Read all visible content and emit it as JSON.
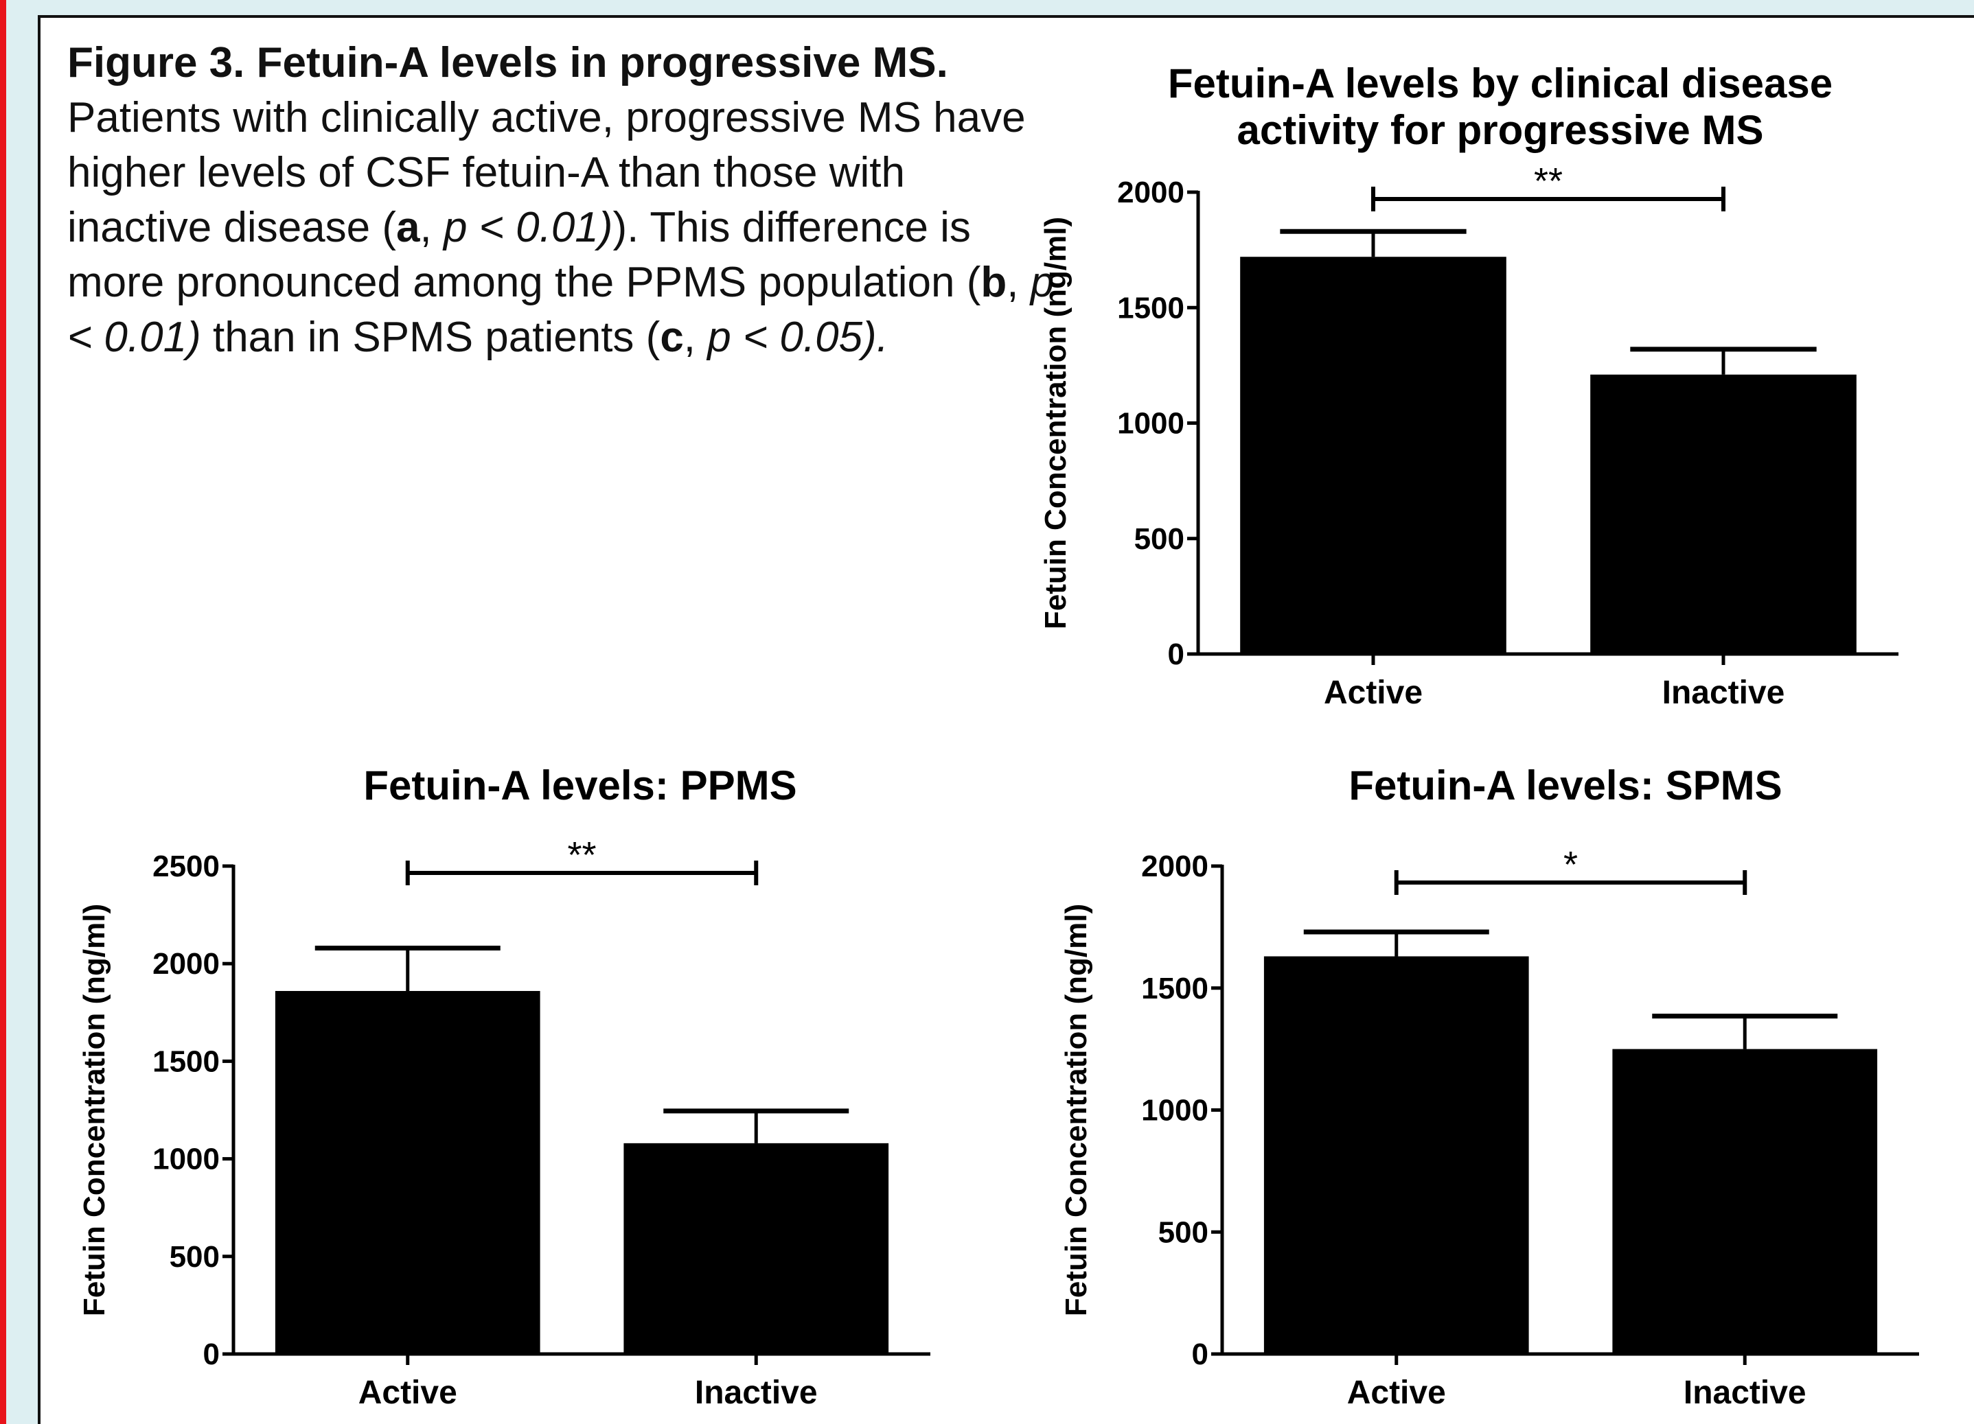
{
  "colors": {
    "page_background": "#ddeff2",
    "panel": "#ffffff",
    "edge_accent": "#e8141c",
    "bars": "#000000"
  },
  "caption": {
    "heading": "Figure 3. Fetuin-A levels in progressive MS.",
    "text_1": " Patients with clinically active, progressive MS have higher levels of CSF fetuin-A than those with inactive disease (",
    "bold_a": "a",
    "text_2": ", ",
    "ital_a": "p < 0.01)",
    "text_3": "). This difference is more pronounced  among the PPMS population (",
    "bold_b": "b",
    "text_4": ", ",
    "ital_b": "p < 0.01)",
    "text_5": " than in SPMS patients (",
    "bold_c": "c",
    "text_6": ", ",
    "ital_c": "p < 0.05)."
  },
  "chart_data": [
    {
      "id": "a",
      "type": "bar",
      "title": "Fetuin-A levels by clinical disease activity for progressive MS",
      "title_lines": [
        "Fetuin-A levels by clinical disease",
        "activity for progressive MS"
      ],
      "xlabel": "",
      "ylabel": "Fetuin Concentration (ng/ml)",
      "categories": [
        "Active",
        "Inactive"
      ],
      "values": [
        1720,
        1210
      ],
      "error_upper": [
        1830,
        1320
      ],
      "ylim": [
        0,
        2000
      ],
      "yticks": [
        0,
        500,
        1000,
        1500,
        2000
      ],
      "significance": "**",
      "grid": false
    },
    {
      "id": "b",
      "type": "bar",
      "title": "Fetuin-A levels: PPMS",
      "title_lines": [
        "Fetuin-A levels: PPMS"
      ],
      "xlabel": "",
      "ylabel": "Fetuin Concentration (ng/ml)",
      "categories": [
        "Active",
        "Inactive"
      ],
      "values": [
        1860,
        1080
      ],
      "error_upper": [
        2080,
        1245
      ],
      "ylim": [
        0,
        2500
      ],
      "yticks": [
        0,
        500,
        1000,
        1500,
        2000,
        2500
      ],
      "significance": "**",
      "grid": false
    },
    {
      "id": "c",
      "type": "bar",
      "title": "Fetuin-A levels: SPMS",
      "title_lines": [
        "Fetuin-A levels: SPMS"
      ],
      "xlabel": "",
      "ylabel": "Fetuin Concentration (ng/ml)",
      "categories": [
        "Active",
        "Inactive"
      ],
      "values": [
        1630,
        1250
      ],
      "error_upper": [
        1730,
        1385
      ],
      "ylim": [
        0,
        2000
      ],
      "yticks": [
        0,
        500,
        1000,
        1500,
        2000
      ],
      "significance": "*",
      "grid": false
    }
  ]
}
